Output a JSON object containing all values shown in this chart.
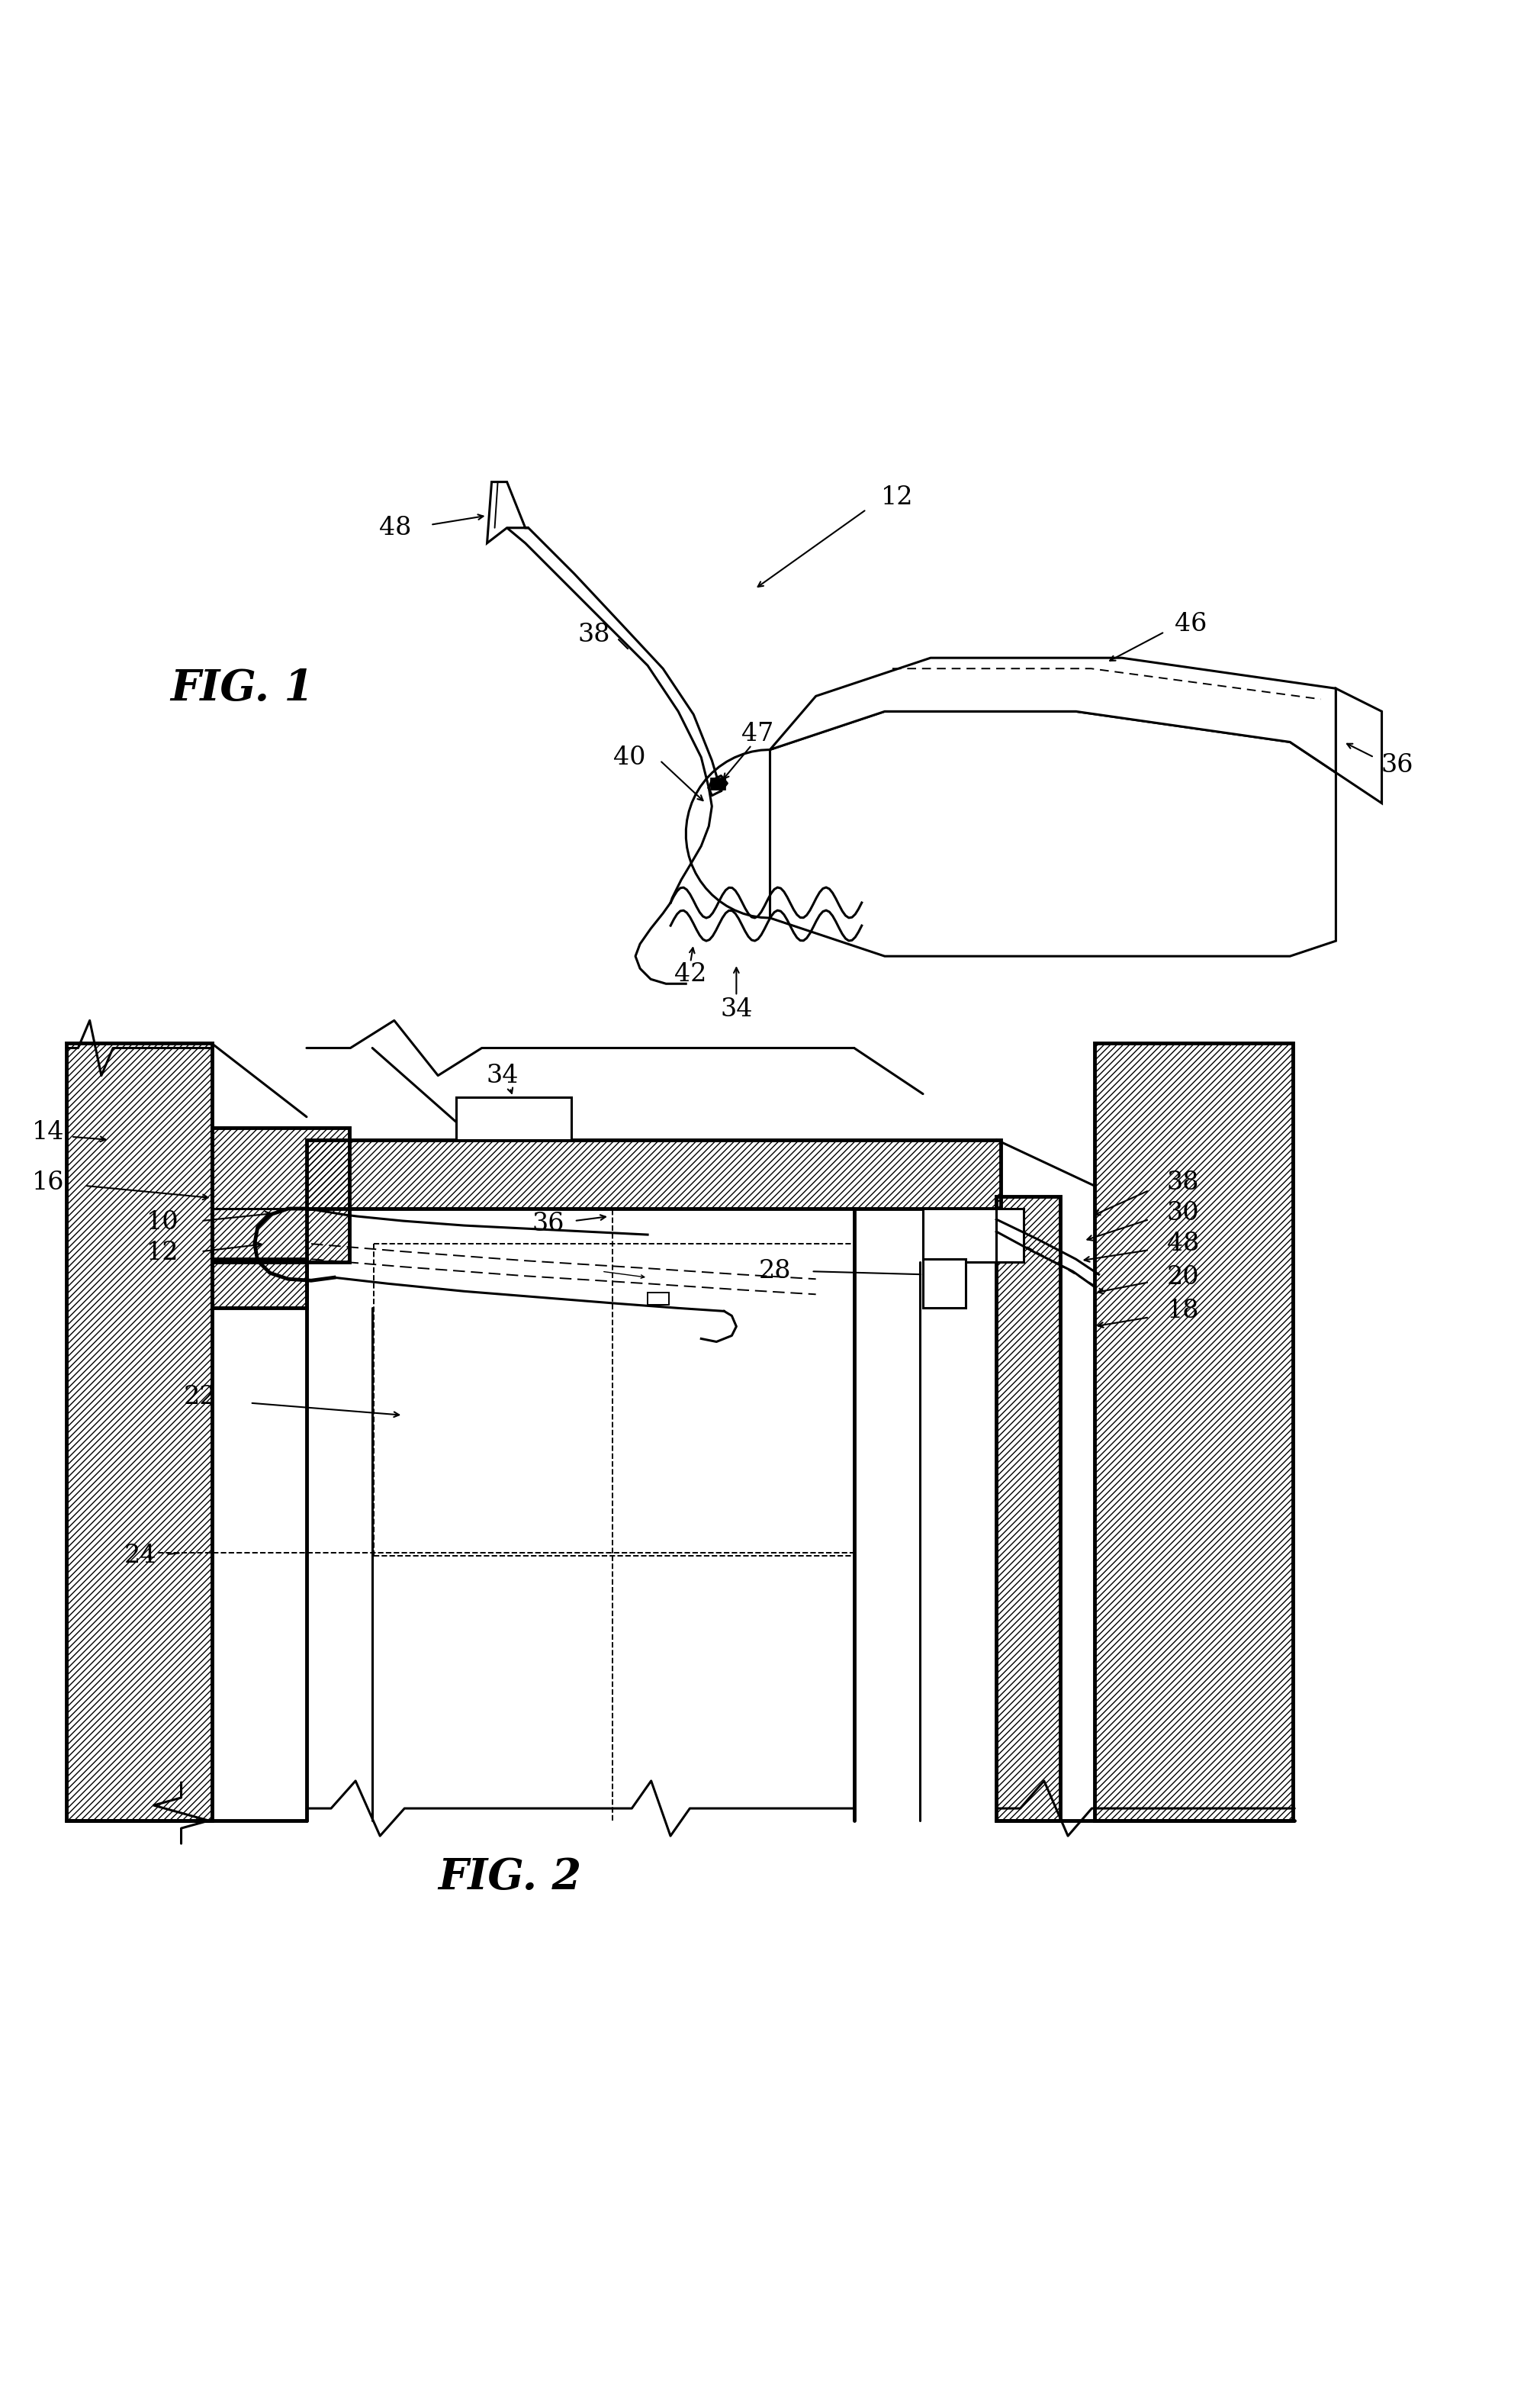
{
  "background_color": "#ffffff",
  "fig1_label": "FIG. 1",
  "fig2_label": "FIG. 2",
  "lw": 2.2,
  "lw_thick": 3.5,
  "lw_thin": 1.4,
  "fontsize_label": 24,
  "fontsize_fig": 40
}
